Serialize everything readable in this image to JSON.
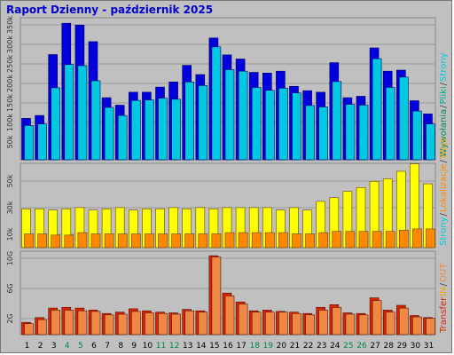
{
  "title": "Raport Dzienny -  październik 2025",
  "colors": {
    "background": "#c0c0c0",
    "title": "#0000cc",
    "visits": "#0000dd",
    "pages": "#00c8e0",
    "files": "#00aa88",
    "hits": "#008866",
    "sites": "#ffff00",
    "kbytes": "#ff8800",
    "transfer": "#dd2200",
    "in": "#eeaa00",
    "out": "#ee8844",
    "weekend": "#008844",
    "weekday": "#000000"
  },
  "legend": {
    "panel1": [
      {
        "key": "wywolania",
        "text": "Wywołania"
      },
      {
        "key": "sep1",
        "text": "/"
      },
      {
        "key": "pliki",
        "text": "Pliki"
      },
      {
        "key": "sep2",
        "text": "/"
      },
      {
        "key": "strony",
        "text": "Strony"
      }
    ],
    "panel2": [
      {
        "key": "strony",
        "text": "Strony"
      },
      {
        "key": "sep1",
        "text": "/"
      },
      {
        "key": "lokalizacje",
        "text": "Lokalizacje"
      },
      {
        "key": "sep2",
        "text": "/"
      },
      {
        "key": "wejscia",
        "text": "Wejś"
      }
    ],
    "panel3": [
      {
        "key": "transfer",
        "text": "Transfer"
      },
      {
        "key": "in",
        "text": "IN"
      },
      {
        "key": "sep",
        "text": "/"
      },
      {
        "key": "out",
        "text": "OUT"
      }
    ]
  },
  "chart_data": [
    {
      "type": "bar",
      "panel": "top",
      "yticks": [
        "50k",
        "100k",
        "150k",
        "200k",
        "250k",
        "300k",
        "350k"
      ],
      "ylim": [
        0,
        380
      ],
      "x": [
        1,
        2,
        3,
        4,
        5,
        6,
        7,
        8,
        9,
        10,
        11,
        12,
        13,
        14,
        15,
        16,
        17,
        18,
        19,
        20,
        21,
        22,
        23,
        24,
        25,
        26,
        27,
        28,
        29,
        30,
        31
      ],
      "weekend_days": [
        4,
        5,
        11,
        12,
        18,
        19,
        25,
        26
      ],
      "series": [
        {
          "key": "back",
          "values": [
            112,
            120,
            285,
            370,
            365,
            320,
            168,
            148,
            183,
            183,
            197,
            211,
            256,
            231,
            330,
            284,
            273,
            237,
            235,
            240,
            199,
            187,
            183,
            263,
            168,
            172,
            303,
            240,
            243,
            160,
            124
          ]
        },
        {
          "key": "front",
          "values": [
            93,
            97,
            195,
            258,
            255,
            214,
            142,
            120,
            161,
            162,
            167,
            164,
            211,
            201,
            306,
            244,
            240,
            196,
            188,
            194,
            181,
            147,
            143,
            212,
            150,
            148,
            274,
            196,
            224,
            132,
            97
          ]
        }
      ]
    },
    {
      "type": "bar",
      "panel": "middle",
      "yticks": [
        "10k",
        "30k",
        "50k"
      ],
      "ylim": [
        0,
        66
      ],
      "x": [
        1,
        2,
        3,
        4,
        5,
        6,
        7,
        8,
        9,
        10,
        11,
        12,
        13,
        14,
        15,
        16,
        17,
        18,
        19,
        20,
        21,
        22,
        23,
        24,
        25,
        26,
        27,
        28,
        29,
        30,
        31
      ],
      "series": [
        {
          "key": "back",
          "values": [
            31,
            31,
            30,
            31,
            32,
            30,
            31,
            32,
            30,
            31,
            31,
            32,
            31,
            32,
            31,
            32,
            32,
            32,
            32,
            30,
            32,
            30,
            37,
            40,
            45,
            48,
            53,
            55,
            61,
            67,
            51
          ]
        },
        {
          "key": "front",
          "values": [
            11,
            11,
            10,
            10,
            12,
            11,
            11,
            11,
            11,
            11,
            11,
            11,
            11,
            11,
            11,
            12,
            12,
            12,
            12,
            12,
            11,
            11,
            12,
            13,
            13,
            13,
            13,
            13,
            14,
            15,
            15
          ]
        }
      ]
    },
    {
      "type": "bar",
      "panel": "bottom",
      "yticks": [
        "2G",
        "6G",
        "10G"
      ],
      "ylim": [
        0,
        12
      ],
      "x": [
        1,
        2,
        3,
        4,
        5,
        6,
        7,
        8,
        9,
        10,
        11,
        12,
        13,
        14,
        15,
        16,
        17,
        18,
        19,
        20,
        21,
        22,
        23,
        24,
        25,
        26,
        27,
        28,
        29,
        30,
        31
      ],
      "series": [
        {
          "key": "back",
          "values": [
            1.8,
            2.5,
            3.9,
            4.0,
            3.9,
            3.6,
            3.1,
            3.3,
            3.8,
            3.5,
            3.3,
            3.2,
            3.7,
            3.5,
            11.6,
            6.1,
            4.8,
            3.5,
            3.6,
            3.4,
            3.3,
            3.1,
            4.0,
            4.4,
            3.2,
            3.1,
            5.4,
            3.6,
            4.3,
            2.8,
            2.5
          ]
        },
        {
          "key": "front",
          "values": [
            1.6,
            2.2,
            3.6,
            3.6,
            3.5,
            3.4,
            2.9,
            3.0,
            3.4,
            3.2,
            3.1,
            3.0,
            3.5,
            3.3,
            11.4,
            5.7,
            4.5,
            3.3,
            3.3,
            3.3,
            3.1,
            2.9,
            3.6,
            4.0,
            3.0,
            2.9,
            5.0,
            3.3,
            3.9,
            2.6,
            2.4
          ]
        }
      ]
    }
  ]
}
